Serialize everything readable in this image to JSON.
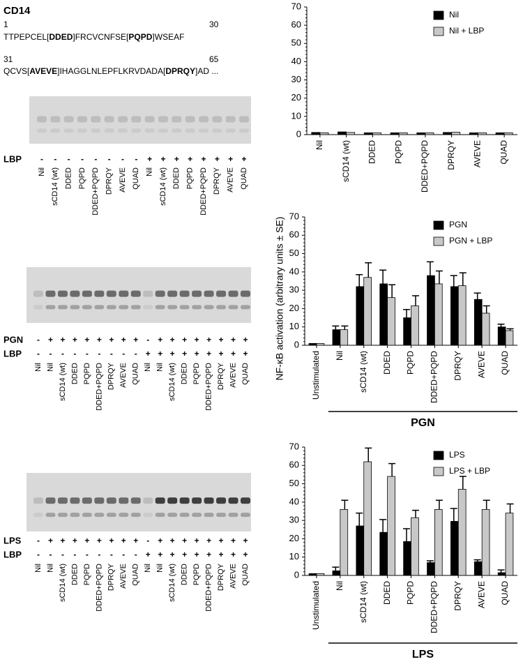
{
  "title": "CD14",
  "sequence": [
    {
      "start": "1",
      "end": "30",
      "segments": [
        "TTPEPCEL[",
        "DDED",
        "]FRCVCNFSE[",
        "PQPD",
        "]WSEAF"
      ]
    },
    {
      "start": "31",
      "end": "65",
      "segments": [
        "QCVS[",
        "AVEVE",
        "]IHAGGLNLEPFLKRVDADA[",
        "DPRQY",
        "]AD ..."
      ]
    }
  ],
  "gels": [
    {
      "rows": [
        {
          "label": "LBP",
          "signs": [
            "-",
            "-",
            "-",
            "-",
            "-",
            "-",
            "-",
            "-",
            "+",
            "+",
            "+",
            "+",
            "+",
            "+",
            "+",
            "+"
          ]
        }
      ],
      "lanes": [
        "Nil",
        "sCD14 (wt)",
        "DDED",
        "PQPD",
        "DDED+PQPD",
        "DPRQY",
        "AVEVE",
        "QUAD",
        "Nil",
        "sCD14 (wt)",
        "DDED",
        "PQPD",
        "DDED+PQPD",
        "DPRQY",
        "AVEVE",
        "QUAD"
      ]
    },
    {
      "rows": [
        {
          "label": "PGN",
          "signs": [
            "-",
            "+",
            "+",
            "+",
            "+",
            "+",
            "+",
            "+",
            "+",
            "-",
            "+",
            "+",
            "+",
            "+",
            "+",
            "+",
            "+",
            "+"
          ]
        },
        {
          "label": "LBP",
          "signs": [
            "-",
            "-",
            "-",
            "-",
            "-",
            "-",
            "-",
            "-",
            "-",
            "+",
            "+",
            "+",
            "+",
            "+",
            "+",
            "+",
            "+",
            "+"
          ]
        }
      ],
      "lanes": [
        "Nil",
        "Nil",
        "sCD14 (wt)",
        "DDED",
        "PQPD",
        "DDED+PQPD",
        "DPRQY",
        "AVEVE",
        "QUAD",
        "Nil",
        "Nil",
        "sCD14 (wt)",
        "DDED",
        "PQPD",
        "DDED+PQPD",
        "DPRQY",
        "AVEVE",
        "QUAD"
      ]
    },
    {
      "rows": [
        {
          "label": "LPS",
          "signs": [
            "-",
            "+",
            "+",
            "+",
            "+",
            "+",
            "+",
            "+",
            "+",
            "-",
            "+",
            "+",
            "+",
            "+",
            "+",
            "+",
            "+",
            "+"
          ]
        },
        {
          "label": "LBP",
          "signs": [
            "-",
            "-",
            "-",
            "-",
            "-",
            "-",
            "-",
            "-",
            "-",
            "+",
            "+",
            "+",
            "+",
            "+",
            "+",
            "+",
            "+",
            "+"
          ]
        }
      ],
      "lanes": [
        "Nil",
        "Nil",
        "sCD14 (wt)",
        "DDED",
        "PQPD",
        "DDED+PQPD",
        "DPRQY",
        "AVEVE",
        "QUAD",
        "Nil",
        "Nil",
        "sCD14 (wt)",
        "DDED",
        "PQPD",
        "DDED+PQPD",
        "DPRQY",
        "AVEVE",
        "QUAD"
      ]
    }
  ],
  "chart_data": [
    {
      "type": "bar",
      "legend": "top-right",
      "categories": [
        "Nil",
        "sCD14 (wt)",
        "DDED",
        "PQPD",
        "DDED+PQPD",
        "DPRQY",
        "AVEVE",
        "QUAD"
      ],
      "series": [
        {
          "name": "Nil",
          "color": "#000000",
          "values": [
            1.2,
            1.5,
            1,
            1,
            1,
            1.2,
            1,
            1
          ]
        },
        {
          "name": "Nil + LBP",
          "color": "#c8c8c8",
          "values": [
            1,
            1.2,
            1,
            1,
            1,
            1.3,
            1,
            1
          ]
        }
      ],
      "ylim": [
        0,
        70
      ],
      "yticks": [
        0,
        10,
        20,
        30,
        40,
        50,
        60,
        70
      ]
    },
    {
      "type": "bar",
      "legend": "top-right",
      "ylabel": "NF-κB activation (arbitrary units ± SE)",
      "group_label": "PGN",
      "categories": [
        "Unstimulated",
        "Nil",
        "sCD14 (wt)",
        "DDED",
        "PQPD",
        "DDED+PQPD",
        "DPRQY",
        "AVEVE",
        "QUAD"
      ],
      "series": [
        {
          "name": "PGN",
          "color": "#000000",
          "values": [
            1,
            8.5,
            32,
            33.5,
            15,
            38,
            32,
            25,
            10
          ],
          "errors": [
            null,
            2,
            6.5,
            7.5,
            4.5,
            7.5,
            6,
            3.5,
            1.5
          ]
        },
        {
          "name": "PGN + LBP",
          "color": "#c8c8c8",
          "values": [
            1,
            8.5,
            37,
            26,
            21.5,
            33.5,
            32.5,
            17.5,
            8
          ],
          "errors": [
            null,
            2,
            8,
            7,
            5.5,
            7,
            7,
            4,
            1
          ]
        }
      ],
      "ylim": [
        0,
        70
      ],
      "yticks": [
        0,
        10,
        20,
        30,
        40,
        50,
        60,
        70
      ]
    },
    {
      "type": "bar",
      "legend": "top-right",
      "group_label": "LPS",
      "categories": [
        "Unstimulated",
        "Nil",
        "sCD14 (wt)",
        "DDED",
        "PQPD",
        "DDED+PQPD",
        "DPRQY",
        "AVEVE",
        "QUAD"
      ],
      "series": [
        {
          "name": "LPS",
          "color": "#000000",
          "values": [
            1,
            2.5,
            27,
            23.5,
            18.5,
            7,
            29.5,
            7.5,
            1.5
          ],
          "errors": [
            null,
            2,
            7,
            7,
            7,
            1,
            7,
            1,
            1.5
          ]
        },
        {
          "name": "LPS + LBP",
          "color": "#c8c8c8",
          "values": [
            1,
            36,
            62,
            54,
            31.5,
            36,
            47,
            36,
            34
          ],
          "errors": [
            null,
            5,
            7.5,
            7,
            4,
            5,
            7,
            5,
            5
          ]
        }
      ],
      "ylim": [
        0,
        70
      ],
      "yticks": [
        0,
        10,
        20,
        30,
        40,
        50,
        60,
        70
      ]
    }
  ]
}
